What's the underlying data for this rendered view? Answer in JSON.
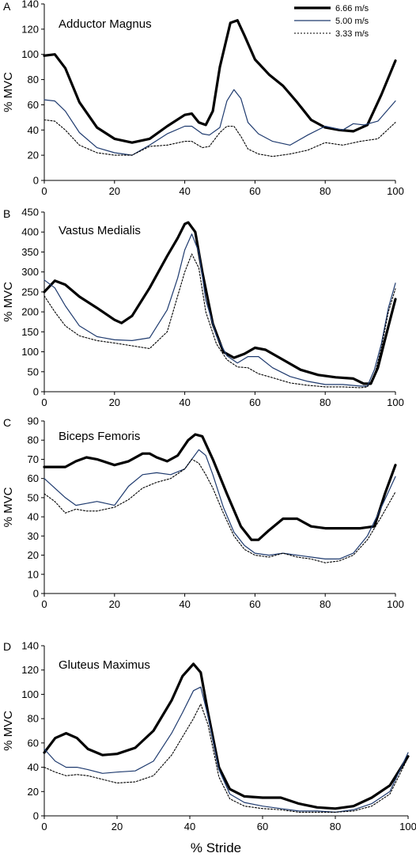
{
  "xlabel": "% Stride",
  "legend": [
    {
      "label": "6.66 m/s",
      "color": "#000000",
      "style": "thick"
    },
    {
      "label": "5.00 m/s",
      "color": "#1e3a6e",
      "style": "thin"
    },
    {
      "label": "3.33 m/s",
      "color": "#000000",
      "style": "dotted"
    }
  ],
  "chart_data": [
    {
      "type": "line",
      "panel": "A",
      "title": "Adductor Magnus",
      "ylabel": "% MVC",
      "xlim": [
        0,
        100
      ],
      "ylim": [
        0,
        140
      ],
      "xticks": [
        0,
        20,
        40,
        60,
        80,
        100
      ],
      "yticks": [
        0,
        20,
        40,
        60,
        80,
        100,
        120,
        140
      ],
      "legend_position": "top-right",
      "series": [
        {
          "name": "6.66 m/s",
          "x": [
            0,
            3,
            6,
            10,
            15,
            20,
            25,
            30,
            35,
            40,
            42,
            44,
            46,
            48,
            50,
            53,
            55,
            57,
            60,
            64,
            68,
            72,
            76,
            80,
            84,
            88,
            92,
            96,
            100
          ],
          "y": [
            99,
            100,
            89,
            62,
            42,
            33,
            30,
            33,
            43,
            52,
            53,
            46,
            44,
            55,
            90,
            125,
            127,
            115,
            96,
            84,
            75,
            62,
            48,
            42,
            40,
            39,
            44,
            68,
            95
          ]
        },
        {
          "name": "5.00 m/s",
          "x": [
            0,
            3,
            6,
            10,
            15,
            20,
            25,
            30,
            35,
            40,
            42,
            45,
            47,
            50,
            52,
            54,
            56,
            58,
            61,
            65,
            70,
            75,
            80,
            85,
            88,
            91,
            95,
            100
          ],
          "y": [
            64,
            63,
            55,
            38,
            26,
            22,
            20,
            28,
            37,
            43,
            43,
            37,
            36,
            42,
            63,
            72,
            65,
            46,
            37,
            31,
            28,
            36,
            43,
            40,
            45,
            44,
            47,
            63
          ]
        },
        {
          "name": "3.33 m/s",
          "x": [
            0,
            3,
            6,
            10,
            15,
            20,
            25,
            30,
            35,
            40,
            42,
            45,
            47,
            50,
            52,
            54,
            56,
            58,
            61,
            65,
            70,
            75,
            80,
            85,
            90,
            95,
            100
          ],
          "y": [
            48,
            47,
            40,
            28,
            22,
            20,
            20,
            27,
            28,
            31,
            31,
            26,
            27,
            38,
            43,
            43,
            35,
            25,
            21,
            19,
            21,
            24,
            30,
            28,
            31,
            33,
            46
          ]
        }
      ]
    },
    {
      "type": "line",
      "panel": "B",
      "title": "Vastus Medialis",
      "ylabel": "% MVC",
      "xlim": [
        0,
        100
      ],
      "ylim": [
        0,
        450
      ],
      "xticks": [
        0,
        20,
        40,
        60,
        80,
        100
      ],
      "yticks": [
        0,
        50,
        100,
        150,
        200,
        250,
        300,
        350,
        400,
        450
      ],
      "series": [
        {
          "name": "6.66 m/s",
          "x": [
            0,
            3,
            6,
            10,
            15,
            20,
            22,
            25,
            30,
            35,
            38,
            40,
            41,
            43,
            45,
            48,
            51,
            54,
            57,
            60,
            63,
            68,
            73,
            78,
            83,
            88,
            91,
            93,
            95,
            97,
            100
          ],
          "y": [
            250,
            278,
            268,
            238,
            210,
            180,
            172,
            190,
            260,
            340,
            385,
            420,
            424,
            400,
            300,
            170,
            100,
            85,
            95,
            110,
            105,
            80,
            55,
            42,
            36,
            33,
            20,
            20,
            60,
            130,
            232
          ]
        },
        {
          "name": "5.00 m/s",
          "x": [
            0,
            3,
            6,
            10,
            15,
            20,
            25,
            30,
            35,
            38,
            40,
            42,
            44,
            46,
            49,
            52,
            55,
            58,
            61,
            65,
            70,
            75,
            80,
            85,
            90,
            92,
            94,
            96,
            98,
            100
          ],
          "y": [
            280,
            260,
            215,
            165,
            138,
            130,
            128,
            135,
            205,
            285,
            355,
            395,
            350,
            230,
            140,
            90,
            72,
            88,
            88,
            60,
            38,
            26,
            18,
            18,
            14,
            14,
            55,
            120,
            210,
            272
          ]
        },
        {
          "name": "3.33 m/s",
          "x": [
            0,
            3,
            6,
            10,
            15,
            20,
            25,
            30,
            35,
            38,
            40,
            42,
            44,
            46,
            49,
            52,
            55,
            58,
            61,
            65,
            70,
            75,
            80,
            85,
            90,
            92,
            94,
            96,
            98,
            100
          ],
          "y": [
            240,
            200,
            165,
            140,
            128,
            122,
            115,
            108,
            150,
            240,
            300,
            345,
            310,
            200,
            120,
            80,
            62,
            60,
            45,
            35,
            22,
            16,
            12,
            12,
            10,
            12,
            40,
            110,
            200,
            258
          ]
        }
      ]
    },
    {
      "type": "line",
      "panel": "C",
      "title": "Biceps Femoris",
      "ylabel": "% MVC",
      "xlim": [
        0,
        100
      ],
      "ylim": [
        0,
        90
      ],
      "xticks": [
        0,
        20,
        40,
        60,
        80,
        100
      ],
      "yticks": [
        0,
        10,
        20,
        30,
        40,
        50,
        60,
        70,
        80,
        90
      ],
      "series": [
        {
          "name": "6.66 m/s",
          "x": [
            0,
            3,
            6,
            9,
            12,
            15,
            20,
            24,
            28,
            30,
            32,
            35,
            38,
            41,
            43,
            45,
            48,
            52,
            56,
            59,
            61,
            64,
            68,
            72,
            76,
            80,
            85,
            90,
            94,
            97,
            100
          ],
          "y": [
            66,
            66,
            66,
            69,
            71,
            70,
            67,
            69,
            73,
            73,
            71,
            69,
            72,
            80,
            83,
            82,
            70,
            52,
            35,
            28,
            28,
            33,
            39,
            39,
            35,
            34,
            34,
            34,
            35,
            52,
            67
          ]
        },
        {
          "name": "5.00 m/s",
          "x": [
            0,
            3,
            6,
            9,
            12,
            15,
            20,
            24,
            28,
            32,
            36,
            40,
            42,
            44,
            46,
            48,
            51,
            54,
            57,
            60,
            64,
            68,
            72,
            76,
            80,
            84,
            88,
            92,
            96,
            100
          ],
          "y": [
            60,
            55,
            50,
            46,
            47,
            48,
            46,
            56,
            62,
            63,
            62,
            65,
            70,
            75,
            72,
            62,
            45,
            32,
            25,
            21,
            20,
            21,
            20,
            19,
            18,
            18,
            21,
            30,
            45,
            61
          ]
        },
        {
          "name": "3.33 m/s",
          "x": [
            0,
            3,
            6,
            9,
            12,
            15,
            20,
            24,
            28,
            32,
            36,
            40,
            42,
            44,
            46,
            48,
            51,
            54,
            57,
            60,
            64,
            68,
            72,
            76,
            80,
            84,
            88,
            92,
            96,
            100
          ],
          "y": [
            52,
            48,
            42,
            44,
            43,
            43,
            45,
            49,
            55,
            58,
            60,
            65,
            70,
            68,
            62,
            55,
            42,
            30,
            23,
            20,
            19,
            21,
            19,
            18,
            16,
            17,
            20,
            28,
            40,
            53
          ]
        }
      ]
    },
    {
      "type": "line",
      "panel": "D",
      "title": "Gluteus Maximus",
      "ylabel": "% MVC",
      "xlim": [
        0,
        100
      ],
      "ylim": [
        0,
        140
      ],
      "xticks": [
        0,
        20,
        40,
        60,
        80,
        100
      ],
      "yticks": [
        0,
        20,
        40,
        60,
        80,
        100,
        120,
        140
      ],
      "series": [
        {
          "name": "6.66 m/s",
          "x": [
            0,
            3,
            6,
            9,
            12,
            16,
            20,
            25,
            30,
            35,
            38,
            41,
            43,
            45,
            48,
            51,
            55,
            60,
            65,
            70,
            75,
            80,
            85,
            90,
            95,
            100
          ],
          "y": [
            52,
            64,
            68,
            64,
            55,
            50,
            51,
            56,
            70,
            95,
            115,
            125,
            118,
            85,
            40,
            22,
            16,
            15,
            15,
            10,
            7,
            6,
            8,
            15,
            25,
            49
          ]
        },
        {
          "name": "5.00 m/s",
          "x": [
            0,
            3,
            6,
            9,
            12,
            16,
            20,
            25,
            30,
            35,
            38,
            41,
            43,
            45,
            48,
            51,
            55,
            60,
            65,
            70,
            75,
            80,
            85,
            90,
            95,
            100
          ],
          "y": [
            55,
            45,
            40,
            40,
            38,
            35,
            36,
            37,
            45,
            68,
            85,
            103,
            106,
            82,
            38,
            18,
            11,
            8,
            6,
            4,
            4,
            3,
            5,
            10,
            20,
            52
          ]
        },
        {
          "name": "3.33 m/s",
          "x": [
            0,
            3,
            6,
            9,
            12,
            16,
            20,
            25,
            30,
            35,
            38,
            41,
            43,
            45,
            48,
            51,
            55,
            60,
            65,
            70,
            75,
            80,
            85,
            90,
            95,
            100
          ],
          "y": [
            40,
            36,
            33,
            34,
            33,
            30,
            27,
            28,
            33,
            50,
            65,
            80,
            92,
            75,
            32,
            14,
            8,
            6,
            5,
            3,
            3,
            3,
            4,
            8,
            18,
            48
          ]
        }
      ]
    }
  ]
}
